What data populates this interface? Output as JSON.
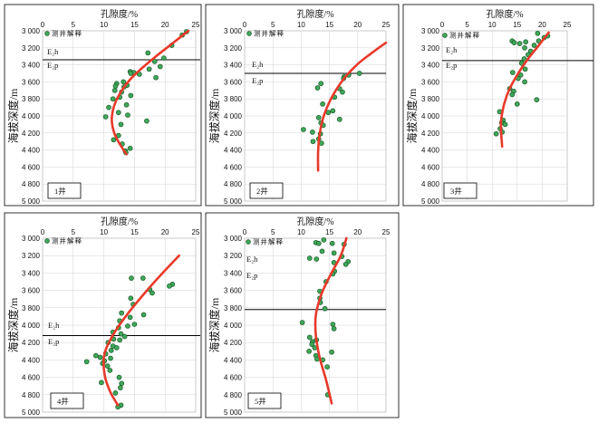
{
  "shared": {
    "x_title": "孔隙度/%",
    "y_title": "海拔深度/m",
    "legend_label": "测井解释",
    "x_ticks": [
      "0",
      "5",
      "10",
      "15",
      "20",
      "25"
    ],
    "y_ticks": [
      "3 000",
      "3 200",
      "3 400",
      "3 600",
      "3 800",
      "4 000",
      "4 200",
      "4 400",
      "4 600",
      "4 800",
      "5 000"
    ],
    "upper_formation": "E₂h",
    "lower_formation": "E₂p",
    "point_color": "#3fa85a",
    "curve_color": "#e8392a"
  },
  "chart_data": [
    {
      "type": "scatter",
      "well": "1井",
      "xlabel": "孔隙度/%",
      "ylabel": "海拔深度/m",
      "xlim": [
        0,
        25
      ],
      "ylim": [
        3000,
        5000
      ],
      "boundary_depth": 3340,
      "points": [
        [
          23.5,
          3010
        ],
        [
          22.8,
          3050
        ],
        [
          21.1,
          3170
        ],
        [
          17.2,
          3260
        ],
        [
          19.8,
          3320
        ],
        [
          18.3,
          3360
        ],
        [
          19.2,
          3420
        ],
        [
          17.4,
          3450
        ],
        [
          14.3,
          3480
        ],
        [
          14.9,
          3490
        ],
        [
          14.4,
          3500
        ],
        [
          15.8,
          3510
        ],
        [
          18.5,
          3550
        ],
        [
          13.2,
          3600
        ],
        [
          12.1,
          3620
        ],
        [
          13.8,
          3640
        ],
        [
          11.9,
          3650
        ],
        [
          13.3,
          3660
        ],
        [
          11.8,
          3700
        ],
        [
          12.9,
          3720
        ],
        [
          14.4,
          3760
        ],
        [
          12.6,
          3780
        ],
        [
          11.5,
          3800
        ],
        [
          13.7,
          3870
        ],
        [
          10.8,
          3900
        ],
        [
          12.4,
          3960
        ],
        [
          13.9,
          3990
        ],
        [
          10.3,
          4010
        ],
        [
          17.0,
          4060
        ],
        [
          12.8,
          4100
        ],
        [
          12.4,
          4230
        ],
        [
          11.6,
          4280
        ],
        [
          13.0,
          4330
        ],
        [
          14.3,
          4380
        ],
        [
          13.5,
          4410
        ],
        [
          13.6,
          4430
        ]
      ],
      "trend": [
        [
          23.8,
          3000
        ],
        [
          21.0,
          3160
        ],
        [
          18.5,
          3300
        ],
        [
          16.2,
          3440
        ],
        [
          14.2,
          3580
        ],
        [
          12.6,
          3740
        ],
        [
          11.6,
          3900
        ],
        [
          11.3,
          4050
        ],
        [
          11.7,
          4200
        ],
        [
          12.6,
          4330
        ],
        [
          13.7,
          4450
        ]
      ]
    },
    {
      "type": "scatter",
      "well": "2井",
      "xlabel": "孔隙度/%",
      "ylabel": "海拔深度/m",
      "xlim": [
        0,
        25
      ],
      "ylim": [
        3000,
        5000
      ],
      "boundary_depth": 3500,
      "points": [
        [
          20.3,
          3500
        ],
        [
          18.4,
          3520
        ],
        [
          17.6,
          3540
        ],
        [
          17.5,
          3560
        ],
        [
          13.5,
          3620
        ],
        [
          12.9,
          3670
        ],
        [
          16.8,
          3680
        ],
        [
          17.3,
          3720
        ],
        [
          15.9,
          3780
        ],
        [
          13.8,
          3860
        ],
        [
          15.6,
          3940
        ],
        [
          14.8,
          3960
        ],
        [
          13.1,
          4020
        ],
        [
          16.8,
          4040
        ],
        [
          13.5,
          4080
        ],
        [
          13.9,
          4110
        ],
        [
          10.4,
          4160
        ],
        [
          12.0,
          4190
        ],
        [
          13.4,
          4210
        ],
        [
          13.1,
          4270
        ],
        [
          12.1,
          4300
        ],
        [
          13.6,
          4320
        ]
      ],
      "trend": [
        [
          25.0,
          3140
        ],
        [
          22.5,
          3260
        ],
        [
          20.0,
          3390
        ],
        [
          17.6,
          3560
        ],
        [
          15.6,
          3760
        ],
        [
          14.1,
          3980
        ],
        [
          13.3,
          4200
        ],
        [
          13.0,
          4420
        ],
        [
          13.0,
          4640
        ]
      ]
    },
    {
      "type": "scatter",
      "well": "3井",
      "xlabel": "孔隙度/%",
      "ylabel": "海拔深度/m",
      "xlim": [
        0,
        25
      ],
      "ylim": [
        3000,
        5000
      ],
      "boundary_depth": 3350,
      "points": [
        [
          19.1,
          3030
        ],
        [
          21.1,
          3060
        ],
        [
          20.4,
          3080
        ],
        [
          19.3,
          3120
        ],
        [
          14.0,
          3120
        ],
        [
          16.7,
          3130
        ],
        [
          14.4,
          3140
        ],
        [
          15.5,
          3150
        ],
        [
          18.4,
          3170
        ],
        [
          16.5,
          3200
        ],
        [
          17.7,
          3240
        ],
        [
          17.2,
          3280
        ],
        [
          16.4,
          3330
        ],
        [
          15.9,
          3380
        ],
        [
          16.6,
          3450
        ],
        [
          14.1,
          3490
        ],
        [
          15.7,
          3520
        ],
        [
          15.2,
          3560
        ],
        [
          16.5,
          3600
        ],
        [
          13.5,
          3680
        ],
        [
          14.3,
          3710
        ],
        [
          14.0,
          3750
        ],
        [
          18.9,
          3810
        ],
        [
          15.0,
          3860
        ],
        [
          11.5,
          3950
        ],
        [
          12.2,
          4050
        ],
        [
          11.9,
          4080
        ],
        [
          12.6,
          4100
        ],
        [
          11.6,
          4150
        ],
        [
          12.0,
          4190
        ],
        [
          10.8,
          4210
        ]
      ],
      "trend": [
        [
          21.3,
          3020
        ],
        [
          19.2,
          3180
        ],
        [
          16.8,
          3360
        ],
        [
          15.0,
          3520
        ],
        [
          13.5,
          3680
        ],
        [
          12.4,
          3860
        ],
        [
          11.8,
          4050
        ],
        [
          11.8,
          4200
        ],
        [
          12.0,
          4360
        ]
      ]
    },
    {
      "type": "scatter",
      "well": "4井",
      "xlabel": "孔隙度/%",
      "ylabel": "海拔深度/m",
      "xlim": [
        0,
        25
      ],
      "ylim": [
        3000,
        5000
      ],
      "boundary_depth": 4120,
      "points": [
        [
          21.2,
          3530
        ],
        [
          20.7,
          3550
        ],
        [
          14.5,
          3460
        ],
        [
          16.4,
          3460
        ],
        [
          17.5,
          3590
        ],
        [
          17.9,
          3630
        ],
        [
          14.4,
          3690
        ],
        [
          14.8,
          3760
        ],
        [
          12.9,
          3860
        ],
        [
          16.5,
          3880
        ],
        [
          14.3,
          3910
        ],
        [
          12.6,
          3950
        ],
        [
          15.0,
          3990
        ],
        [
          13.9,
          4010
        ],
        [
          12.4,
          4030
        ],
        [
          11.5,
          4080
        ],
        [
          12.8,
          4100
        ],
        [
          13.4,
          4130
        ],
        [
          11.6,
          4160
        ],
        [
          12.6,
          4170
        ],
        [
          10.7,
          4200
        ],
        [
          11.5,
          4240
        ],
        [
          12.1,
          4260
        ],
        [
          11.2,
          4290
        ],
        [
          10.3,
          4330
        ],
        [
          8.7,
          4350
        ],
        [
          9.4,
          4370
        ],
        [
          11.1,
          4380
        ],
        [
          10.1,
          4410
        ],
        [
          7.2,
          4420
        ],
        [
          9.8,
          4440
        ],
        [
          10.6,
          4470
        ],
        [
          11.0,
          4520
        ],
        [
          12.5,
          4600
        ],
        [
          9.6,
          4660
        ],
        [
          12.9,
          4670
        ],
        [
          12.7,
          4720
        ],
        [
          11.9,
          4780
        ],
        [
          12.8,
          4920
        ],
        [
          12.3,
          4940
        ]
      ],
      "trend": [
        [
          22.3,
          3200
        ],
        [
          19.6,
          3400
        ],
        [
          16.8,
          3620
        ],
        [
          14.0,
          3860
        ],
        [
          11.6,
          4100
        ],
        [
          10.1,
          4330
        ],
        [
          10.1,
          4560
        ],
        [
          11.0,
          4760
        ],
        [
          12.3,
          4920
        ]
      ]
    },
    {
      "type": "scatter",
      "well": "5井",
      "xlabel": "孔隙度/%",
      "ylabel": "海拔深度/m",
      "xlim": [
        0,
        25
      ],
      "ylim": [
        3000,
        5000
      ],
      "boundary_depth": 3820,
      "points": [
        [
          14.0,
          3020
        ],
        [
          12.6,
          3050
        ],
        [
          13.1,
          3060
        ],
        [
          15.5,
          3060
        ],
        [
          17.6,
          3070
        ],
        [
          13.7,
          3150
        ],
        [
          15.8,
          3170
        ],
        [
          17.2,
          3210
        ],
        [
          11.5,
          3230
        ],
        [
          12.7,
          3240
        ],
        [
          18.3,
          3270
        ],
        [
          15.8,
          3280
        ],
        [
          17.9,
          3300
        ],
        [
          15.9,
          3380
        ],
        [
          15.6,
          3410
        ],
        [
          14.4,
          3500
        ],
        [
          13.3,
          3610
        ],
        [
          13.3,
          3690
        ],
        [
          13.4,
          3740
        ],
        [
          14.2,
          3810
        ],
        [
          10.2,
          3970
        ],
        [
          15.6,
          3990
        ],
        [
          15.8,
          4040
        ],
        [
          11.5,
          4140
        ],
        [
          12.7,
          4170
        ],
        [
          12.0,
          4190
        ],
        [
          11.9,
          4220
        ],
        [
          12.4,
          4260
        ],
        [
          11.4,
          4300
        ],
        [
          15.4,
          4310
        ],
        [
          12.6,
          4350
        ],
        [
          12.8,
          4390
        ],
        [
          13.8,
          4400
        ],
        [
          14.6,
          4480
        ],
        [
          14.7,
          4800
        ]
      ],
      "trend": [
        [
          18.0,
          3000
        ],
        [
          17.0,
          3200
        ],
        [
          15.2,
          3420
        ],
        [
          13.6,
          3640
        ],
        [
          12.6,
          3880
        ],
        [
          12.6,
          4120
        ],
        [
          13.3,
          4380
        ],
        [
          14.4,
          4630
        ],
        [
          15.4,
          4900
        ]
      ]
    }
  ]
}
